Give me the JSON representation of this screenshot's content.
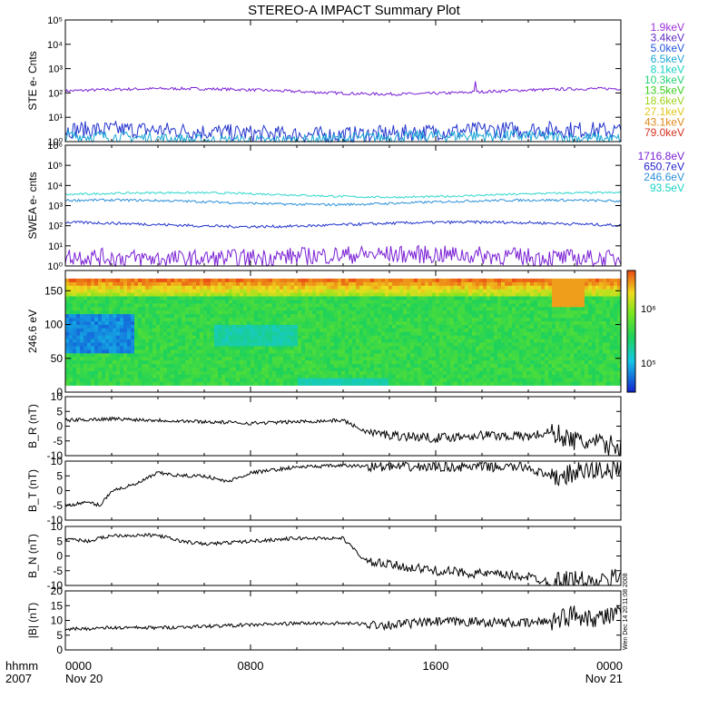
{
  "title": "STEREO-A IMPACT Summary Plot",
  "footer": {
    "hhmm": "hhmm",
    "year": "2007",
    "date_start": "Nov 20",
    "date_end": "Nov 21",
    "side_stamp": "Wen Dec 14 20:11:08 2008"
  },
  "chart_data": [
    {
      "id": "ste",
      "type": "line",
      "ylabel": "STE e- Cnts",
      "scale": "log",
      "ylim_exp": [
        0,
        5
      ],
      "tick_labels": [
        "10⁰",
        "10¹",
        "10²",
        "10³",
        "10⁴",
        "10⁵"
      ],
      "legend": [
        {
          "name": "1.9keV",
          "color": "#9b30d8"
        },
        {
          "name": "3.4keV",
          "color": "#5e2bc2"
        },
        {
          "name": "5.0keV",
          "color": "#2255dd"
        },
        {
          "name": "6.5keV",
          "color": "#1aa7d6"
        },
        {
          "name": "8.1keV",
          "color": "#19d2c4"
        },
        {
          "name": "10.3keV",
          "color": "#26d27a"
        },
        {
          "name": "13.5keV",
          "color": "#3ccf1b"
        },
        {
          "name": "18.6keV",
          "color": "#9fd21b"
        },
        {
          "name": "27.1keV",
          "color": "#e0c81a"
        },
        {
          "name": "43.1keV",
          "color": "#e08a1a"
        },
        {
          "name": "79.0keV",
          "color": "#d83020"
        }
      ],
      "series": [
        {
          "level": 120,
          "noise": 0.06,
          "color": "#7a1fd4"
        },
        {
          "level": 2.5,
          "noise": 0.35,
          "color": "#2233cc"
        },
        {
          "level": 1.4,
          "noise": 0.25,
          "color": "#1aa7d6"
        }
      ]
    },
    {
      "id": "swea",
      "type": "line",
      "ylabel": "SWEA e- cnts",
      "scale": "log",
      "ylim_exp": [
        0,
        6
      ],
      "tick_labels": [
        "10⁰",
        "10¹",
        "10²",
        "10³",
        "10⁴",
        "10⁵",
        "10⁶"
      ],
      "legend": [
        {
          "name": "1716.8eV",
          "color": "#7a1fd4"
        },
        {
          "name": "650.7eV",
          "color": "#2222cc"
        },
        {
          "name": "246.6eV",
          "color": "#2a8fd8"
        },
        {
          "name": "93.5eV",
          "color": "#19d2c4"
        }
      ],
      "series": [
        {
          "level": 3500,
          "noise": 0.05,
          "color": "#2fd6cc"
        },
        {
          "level": 1500,
          "noise": 0.06,
          "color": "#2a8fd8"
        },
        {
          "level": 120,
          "noise": 0.07,
          "color": "#2233cc"
        },
        {
          "level": 3,
          "noise": 0.45,
          "color": "#7a1fd4"
        }
      ]
    },
    {
      "id": "spectrogram",
      "type": "heatmap",
      "ylabel": "246.6 eV",
      "ylim": [
        0,
        180
      ],
      "yticks": [
        0,
        50,
        100,
        150
      ],
      "colorbar_ticks": [
        "10⁶",
        "10⁵"
      ]
    },
    {
      "id": "br",
      "type": "line",
      "ylabel": "B_R (nT)",
      "ylim": [
        -10,
        10
      ],
      "yticks": [
        -10,
        -5,
        0,
        5,
        10
      ],
      "trend": [
        [
          0,
          2
        ],
        [
          2,
          2.5
        ],
        [
          4,
          2
        ],
        [
          6,
          1.5
        ],
        [
          8,
          1
        ],
        [
          10,
          1.5
        ],
        [
          12,
          2
        ],
        [
          13,
          -2
        ],
        [
          14,
          -3
        ],
        [
          16,
          -4
        ],
        [
          18,
          -3
        ],
        [
          20,
          -3.5
        ],
        [
          21,
          -2
        ],
        [
          22,
          -5
        ],
        [
          23,
          -6
        ],
        [
          24,
          -7
        ]
      ]
    },
    {
      "id": "bt",
      "type": "line",
      "ylabel": "B_T (nT)",
      "ylim": [
        -10,
        10
      ],
      "yticks": [
        -10,
        -5,
        0,
        5,
        10
      ],
      "trend": [
        [
          0,
          -5
        ],
        [
          1,
          -4
        ],
        [
          1.5,
          -5
        ],
        [
          2,
          0
        ],
        [
          3,
          2
        ],
        [
          4,
          6
        ],
        [
          5,
          5
        ],
        [
          6,
          5
        ],
        [
          7,
          3
        ],
        [
          8,
          6
        ],
        [
          10,
          8
        ],
        [
          12,
          8.5
        ],
        [
          14,
          8
        ],
        [
          16,
          8
        ],
        [
          18,
          8
        ],
        [
          20,
          8
        ],
        [
          21,
          4
        ],
        [
          22,
          6
        ],
        [
          23,
          7
        ],
        [
          24,
          7
        ]
      ]
    },
    {
      "id": "bn",
      "type": "line",
      "ylabel": "B_N (nT)",
      "ylim": [
        -10,
        10
      ],
      "yticks": [
        -10,
        -5,
        0,
        5,
        10
      ],
      "trend": [
        [
          0,
          6
        ],
        [
          1,
          5
        ],
        [
          2,
          7
        ],
        [
          3,
          7
        ],
        [
          4,
          7
        ],
        [
          5,
          5
        ],
        [
          6,
          4
        ],
        [
          8,
          5
        ],
        [
          10,
          6
        ],
        [
          12,
          6
        ],
        [
          13,
          -2
        ],
        [
          14,
          -3
        ],
        [
          16,
          -5
        ],
        [
          18,
          -6
        ],
        [
          20,
          -7
        ],
        [
          21,
          -9
        ],
        [
          22,
          -8
        ],
        [
          23,
          -10
        ],
        [
          24,
          -6
        ]
      ]
    },
    {
      "id": "b_mag",
      "type": "line",
      "ylabel": "|B| (nT)",
      "ylim": [
        0,
        20
      ],
      "yticks": [
        0,
        5,
        10,
        15,
        20
      ],
      "trend": [
        [
          0,
          7
        ],
        [
          2,
          7.5
        ],
        [
          4,
          7.5
        ],
        [
          6,
          8
        ],
        [
          8,
          8.5
        ],
        [
          10,
          9
        ],
        [
          12,
          9
        ],
        [
          14,
          8.5
        ],
        [
          16,
          9.5
        ],
        [
          18,
          9.5
        ],
        [
          20,
          9
        ],
        [
          21,
          10
        ],
        [
          22,
          12
        ],
        [
          23,
          11
        ],
        [
          24,
          12
        ]
      ]
    }
  ],
  "x_axis": {
    "xlim_hours": [
      0,
      24
    ],
    "tick_labels": [
      "0000",
      "0800",
      "1600",
      "0000"
    ]
  }
}
